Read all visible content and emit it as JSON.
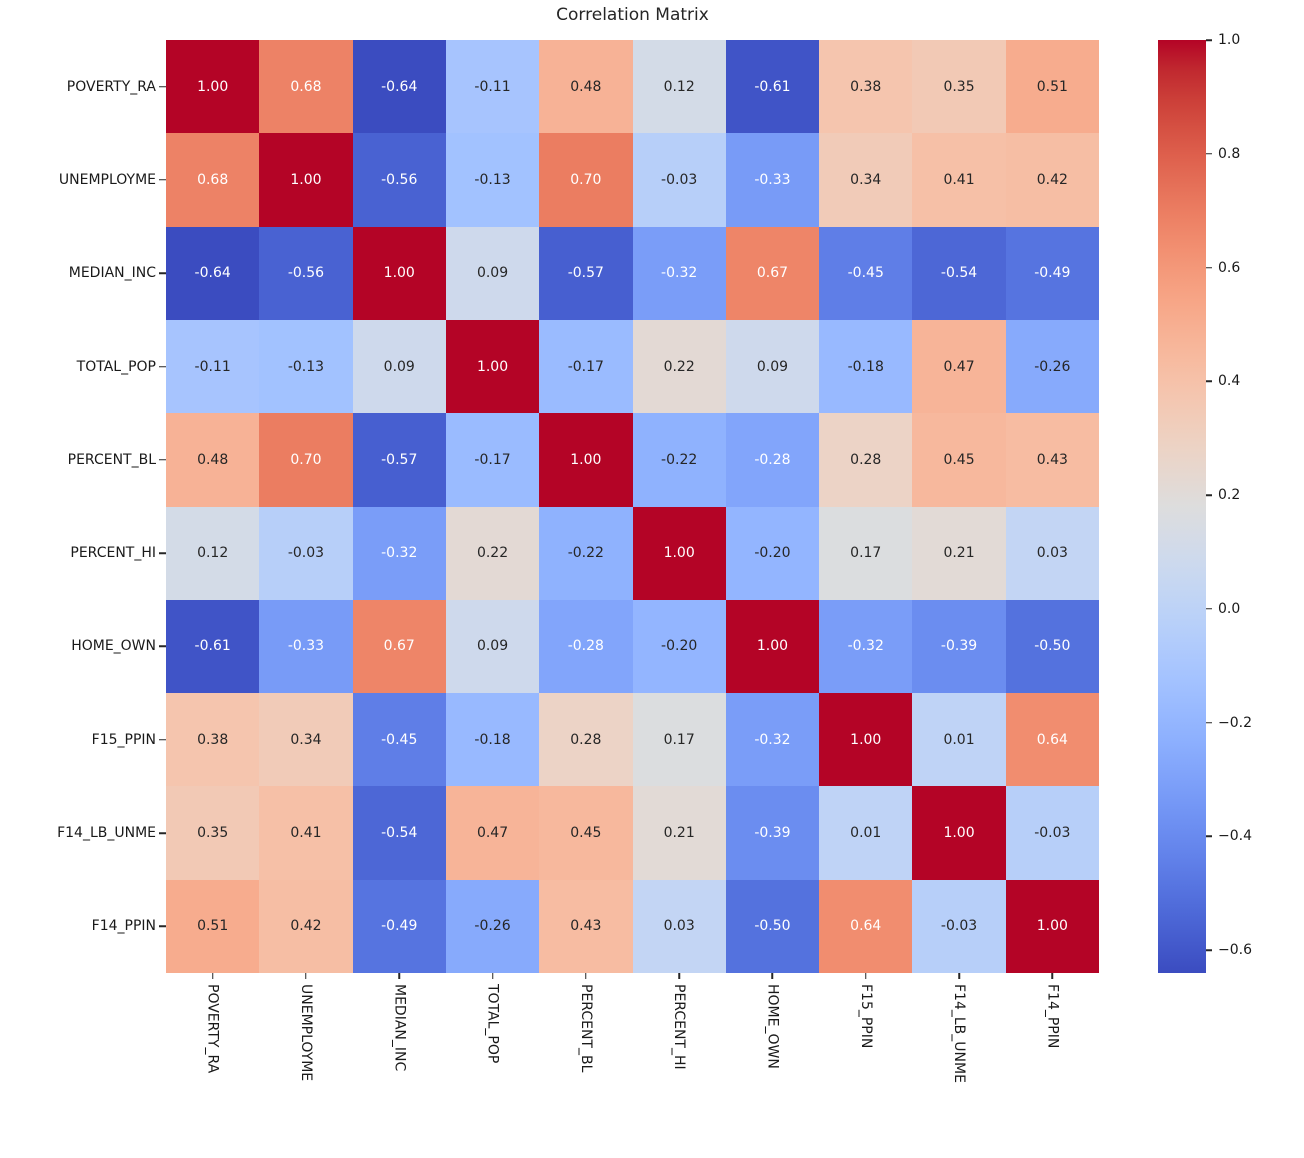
{
  "title": "Correlation Matrix",
  "chart_data": {
    "type": "heatmap",
    "title": "Correlation Matrix",
    "labels": [
      "POVERTY_RA",
      "UNEMPLOYME",
      "MEDIAN_INC",
      "TOTAL_POP",
      "PERCENT_BL",
      "PERCENT_HI",
      "HOME_OWN",
      "F15_PPIN",
      "F14_LB_UNME",
      "F14_PPIN"
    ],
    "matrix": [
      [
        1.0,
        0.68,
        -0.64,
        -0.11,
        0.48,
        0.12,
        -0.61,
        0.38,
        0.35,
        0.51
      ],
      [
        0.68,
        1.0,
        -0.56,
        -0.13,
        0.7,
        -0.03,
        -0.33,
        0.34,
        0.41,
        0.42
      ],
      [
        -0.64,
        -0.56,
        1.0,
        0.09,
        -0.57,
        -0.32,
        0.67,
        -0.45,
        -0.54,
        -0.49
      ],
      [
        -0.11,
        -0.13,
        0.09,
        1.0,
        -0.17,
        0.22,
        0.09,
        -0.18,
        0.47,
        -0.26
      ],
      [
        0.48,
        0.7,
        -0.57,
        -0.17,
        1.0,
        -0.22,
        -0.28,
        0.28,
        0.45,
        0.43
      ],
      [
        0.12,
        -0.03,
        -0.32,
        0.22,
        -0.22,
        1.0,
        -0.2,
        0.17,
        0.21,
        0.03
      ],
      [
        -0.61,
        -0.33,
        0.67,
        0.09,
        -0.28,
        -0.2,
        1.0,
        -0.32,
        -0.39,
        -0.5
      ],
      [
        0.38,
        0.34,
        -0.45,
        -0.18,
        0.28,
        0.17,
        -0.32,
        1.0,
        0.01,
        0.64
      ],
      [
        0.35,
        0.41,
        -0.54,
        0.47,
        0.45,
        0.21,
        -0.39,
        0.01,
        1.0,
        -0.03
      ],
      [
        0.51,
        0.42,
        -0.49,
        -0.26,
        0.43,
        0.03,
        -0.5,
        0.64,
        -0.03,
        1.0
      ]
    ],
    "vmin": -0.64,
    "vmax": 1.0,
    "value_format_decimals": 2,
    "colorbar": {
      "position": "right",
      "ticks": [
        {
          "value": 1.0,
          "label": "1.0"
        },
        {
          "value": 0.8,
          "label": "0.8"
        },
        {
          "value": 0.6,
          "label": "0.6"
        },
        {
          "value": 0.4,
          "label": "0.4"
        },
        {
          "value": 0.2,
          "label": "0.2"
        },
        {
          "value": 0.0,
          "label": "0.0"
        },
        {
          "value": -0.2,
          "label": "−0.2"
        },
        {
          "value": -0.4,
          "label": "−0.4"
        },
        {
          "value": -0.6,
          "label": "−0.6"
        }
      ]
    },
    "colormap": {
      "name": "coolwarm",
      "stops": [
        "#3B4CC0",
        "#445ACC",
        "#4D68D7",
        "#5775E1",
        "#6282EA",
        "#6C8EF1",
        "#779AF7",
        "#82A5FB",
        "#8DB0FE",
        "#98B9FF",
        "#A3C2FF",
        "#AEC9FD",
        "#B8D0F9",
        "#C2D5F4",
        "#CCD9EE",
        "#D5DBE6",
        "#DDDDDD",
        "#E5D8D1",
        "#ECD3C5",
        "#F1CCB9",
        "#F5C4AD",
        "#F7BBA0",
        "#F7B194",
        "#F7A687",
        "#F49A7B",
        "#F18D6F",
        "#EC7F63",
        "#E57058",
        "#DE604D",
        "#D55042",
        "#CB3E38",
        "#C0282F",
        "#B40426"
      ]
    },
    "annotation_colors": {
      "dark": "#262626",
      "light": "#FFFFFF"
    },
    "grid": false,
    "legend": false
  }
}
